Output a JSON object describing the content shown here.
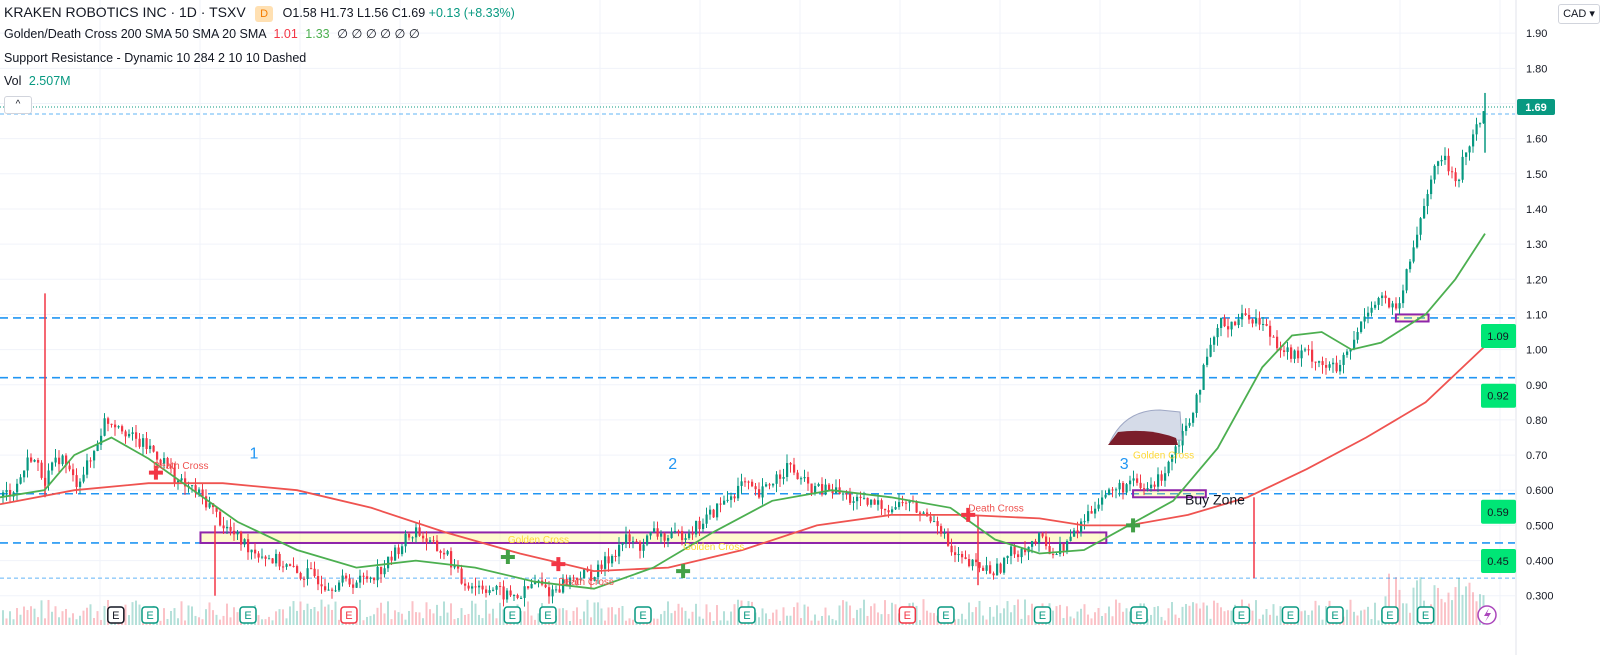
{
  "header": {
    "symbol": "KRAKEN ROBOTICS INC · 1D · TSXV",
    "badge": "D",
    "open": "O1.58",
    "high": "H1.73",
    "low": "L1.56",
    "close": "C1.69",
    "change": "+0.13 (+8.33%)",
    "indicator1_label": "Golden/Death Cross 200 SMA 50 SMA 20 SMA",
    "indicator1_val1": "1.01",
    "indicator1_val2": "1.33",
    "indicator1_rest": "∅ ∅ ∅ ∅ ∅ ∅",
    "indicator2_label": "Support Resistance - Dynamic 10 284 2 10 10 Dashed",
    "vol_label": "Vol",
    "vol_value": "2.507M",
    "currency": "CAD",
    "collapse": "^"
  },
  "colors": {
    "up": "#089981",
    "down": "#f23645",
    "sma200": "#ef5350",
    "sma50": "#4caf50",
    "sr": "#2196f3",
    "zone": "#8e24aa",
    "price_tag": "#089981"
  },
  "chart_data": {
    "type": "candlestick",
    "title": "KRAKEN ROBOTICS INC · 1D · TSXV",
    "ylim": [
      0.27,
      1.93
    ],
    "y_ticks": [
      "1.90",
      "1.80",
      "1.70",
      "1.60",
      "1.50",
      "1.40",
      "1.30",
      "1.20",
      "1.10",
      "1.00",
      "0.90",
      "0.80",
      "0.70",
      "0.600",
      "0.500",
      "0.400",
      "0.300"
    ],
    "last_price": "1.69",
    "sr_levels": [
      {
        "value": 1.09,
        "label": "1.09"
      },
      {
        "value": 0.92,
        "label": "0.92"
      },
      {
        "value": 0.59,
        "label": "0.59"
      },
      {
        "value": 0.45,
        "label": "0.45"
      },
      {
        "value": 0.35,
        "label": ""
      },
      {
        "value": 1.67,
        "label": ""
      }
    ],
    "price_path": [
      [
        0,
        0.58
      ],
      [
        0.01,
        0.61
      ],
      [
        0.02,
        0.7
      ],
      [
        0.03,
        0.63
      ],
      [
        0.04,
        0.7
      ],
      [
        0.05,
        0.62
      ],
      [
        0.06,
        0.68
      ],
      [
        0.07,
        0.8
      ],
      [
        0.08,
        0.79
      ],
      [
        0.09,
        0.74
      ],
      [
        0.1,
        0.72
      ],
      [
        0.11,
        0.68
      ],
      [
        0.12,
        0.62
      ],
      [
        0.13,
        0.6
      ],
      [
        0.14,
        0.56
      ],
      [
        0.15,
        0.5
      ],
      [
        0.16,
        0.46
      ],
      [
        0.17,
        0.43
      ],
      [
        0.18,
        0.41
      ],
      [
        0.19,
        0.39
      ],
      [
        0.2,
        0.36
      ],
      [
        0.21,
        0.36
      ],
      [
        0.22,
        0.33
      ],
      [
        0.23,
        0.34
      ],
      [
        0.24,
        0.34
      ],
      [
        0.25,
        0.36
      ],
      [
        0.26,
        0.39
      ],
      [
        0.27,
        0.45
      ],
      [
        0.28,
        0.49
      ],
      [
        0.29,
        0.44
      ],
      [
        0.3,
        0.42
      ],
      [
        0.31,
        0.34
      ],
      [
        0.32,
        0.33
      ],
      [
        0.33,
        0.32
      ],
      [
        0.34,
        0.3
      ],
      [
        0.35,
        0.3
      ],
      [
        0.36,
        0.34
      ],
      [
        0.37,
        0.31
      ],
      [
        0.38,
        0.34
      ],
      [
        0.39,
        0.36
      ],
      [
        0.4,
        0.36
      ],
      [
        0.41,
        0.41
      ],
      [
        0.42,
        0.46
      ],
      [
        0.43,
        0.44
      ],
      [
        0.44,
        0.48
      ],
      [
        0.45,
        0.46
      ],
      [
        0.46,
        0.48
      ],
      [
        0.47,
        0.5
      ],
      [
        0.48,
        0.54
      ],
      [
        0.49,
        0.58
      ],
      [
        0.5,
        0.62
      ],
      [
        0.51,
        0.58
      ],
      [
        0.52,
        0.63
      ],
      [
        0.53,
        0.67
      ],
      [
        0.54,
        0.62
      ],
      [
        0.55,
        0.6
      ],
      [
        0.56,
        0.6
      ],
      [
        0.57,
        0.58
      ],
      [
        0.58,
        0.56
      ],
      [
        0.59,
        0.56
      ],
      [
        0.6,
        0.55
      ],
      [
        0.61,
        0.57
      ],
      [
        0.62,
        0.53
      ],
      [
        0.63,
        0.52
      ],
      [
        0.64,
        0.42
      ],
      [
        0.65,
        0.39
      ],
      [
        0.66,
        0.38
      ],
      [
        0.67,
        0.37
      ],
      [
        0.68,
        0.42
      ],
      [
        0.69,
        0.44
      ],
      [
        0.7,
        0.46
      ],
      [
        0.71,
        0.42
      ],
      [
        0.72,
        0.46
      ],
      [
        0.73,
        0.52
      ],
      [
        0.74,
        0.58
      ],
      [
        0.75,
        0.6
      ],
      [
        0.76,
        0.62
      ],
      [
        0.77,
        0.6
      ],
      [
        0.78,
        0.63
      ],
      [
        0.79,
        0.72
      ],
      [
        0.8,
        0.8
      ],
      [
        0.81,
        0.94
      ],
      [
        0.82,
        1.07
      ],
      [
        0.83,
        1.08
      ],
      [
        0.84,
        1.1
      ],
      [
        0.85,
        1.07
      ],
      [
        0.86,
        1.02
      ],
      [
        0.87,
        0.98
      ],
      [
        0.88,
        0.99
      ],
      [
        0.89,
        0.96
      ],
      [
        0.9,
        0.94
      ],
      [
        0.91,
        1.01
      ],
      [
        0.92,
        1.12
      ],
      [
        0.93,
        1.15
      ],
      [
        0.94,
        1.1
      ],
      [
        0.95,
        1.27
      ],
      [
        0.96,
        1.45
      ],
      [
        0.97,
        1.55
      ],
      [
        0.98,
        1.48
      ],
      [
        0.99,
        1.6
      ],
      [
        1.0,
        1.69
      ]
    ],
    "sma200": [
      [
        0,
        0.56
      ],
      [
        0.05,
        0.6
      ],
      [
        0.1,
        0.62
      ],
      [
        0.15,
        0.62
      ],
      [
        0.2,
        0.6
      ],
      [
        0.25,
        0.55
      ],
      [
        0.3,
        0.48
      ],
      [
        0.35,
        0.42
      ],
      [
        0.4,
        0.37
      ],
      [
        0.45,
        0.38
      ],
      [
        0.5,
        0.43
      ],
      [
        0.55,
        0.5
      ],
      [
        0.6,
        0.53
      ],
      [
        0.65,
        0.53
      ],
      [
        0.7,
        0.52
      ],
      [
        0.73,
        0.5
      ],
      [
        0.76,
        0.5
      ],
      [
        0.8,
        0.53
      ],
      [
        0.84,
        0.58
      ],
      [
        0.88,
        0.66
      ],
      [
        0.92,
        0.75
      ],
      [
        0.96,
        0.85
      ],
      [
        1.0,
        1.01
      ]
    ],
    "sma50": [
      [
        0,
        0.58
      ],
      [
        0.03,
        0.6
      ],
      [
        0.05,
        0.7
      ],
      [
        0.075,
        0.75
      ],
      [
        0.1,
        0.69
      ],
      [
        0.13,
        0.6
      ],
      [
        0.16,
        0.51
      ],
      [
        0.2,
        0.43
      ],
      [
        0.24,
        0.38
      ],
      [
        0.28,
        0.4
      ],
      [
        0.32,
        0.38
      ],
      [
        0.36,
        0.34
      ],
      [
        0.4,
        0.32
      ],
      [
        0.44,
        0.38
      ],
      [
        0.48,
        0.48
      ],
      [
        0.52,
        0.57
      ],
      [
        0.56,
        0.6
      ],
      [
        0.6,
        0.58
      ],
      [
        0.64,
        0.55
      ],
      [
        0.67,
        0.46
      ],
      [
        0.7,
        0.42
      ],
      [
        0.73,
        0.43
      ],
      [
        0.76,
        0.5
      ],
      [
        0.79,
        0.57
      ],
      [
        0.82,
        0.72
      ],
      [
        0.85,
        0.95
      ],
      [
        0.87,
        1.04
      ],
      [
        0.89,
        1.05
      ],
      [
        0.91,
        1.0
      ],
      [
        0.93,
        1.02
      ],
      [
        0.96,
        1.1
      ],
      [
        0.98,
        1.2
      ],
      [
        1.0,
        1.33
      ]
    ],
    "zones": [
      {
        "label": "",
        "x0": 0.135,
        "x1": 0.745,
        "y0": 0.45,
        "y1": 0.48
      },
      {
        "label": "Buy Zone",
        "x0": 0.763,
        "x1": 0.812,
        "y0": 0.58,
        "y1": 0.6
      },
      {
        "label": "",
        "x0": 0.94,
        "x1": 0.962,
        "y0": 1.08,
        "y1": 1.1
      }
    ],
    "annotations": [
      {
        "text": "1",
        "x": 0.168,
        "y": 0.69
      },
      {
        "text": "2",
        "x": 0.45,
        "y": 0.66
      },
      {
        "text": "3",
        "x": 0.754,
        "y": 0.66
      },
      {
        "text": "Buy Zone",
        "x": 0.798,
        "y": 0.56
      },
      {
        "text": "Death Cross",
        "x": 0.103,
        "y": 0.66
      },
      {
        "text": "Death Cross",
        "x": 0.376,
        "y": 0.33
      },
      {
        "text": "Death Cross",
        "x": 0.652,
        "y": 0.54
      },
      {
        "text": "Golden Cross",
        "x": 0.342,
        "y": 0.45
      },
      {
        "text": "Golden Cross",
        "x": 0.46,
        "y": 0.43
      },
      {
        "text": "Golden Cross",
        "x": 0.763,
        "y": 0.69
      }
    ],
    "cross_markers": [
      {
        "kind": "death",
        "x": 0.105,
        "y": 0.65
      },
      {
        "kind": "golden",
        "x": 0.342,
        "y": 0.41
      },
      {
        "kind": "death",
        "x": 0.376,
        "y": 0.39
      },
      {
        "kind": "golden",
        "x": 0.46,
        "y": 0.37
      },
      {
        "kind": "death",
        "x": 0.652,
        "y": 0.53
      },
      {
        "kind": "golden",
        "x": 0.763,
        "y": 0.5
      }
    ],
    "event_markers": [
      {
        "kind": "dividend",
        "x": 0.078
      },
      {
        "kind": "earnings",
        "x": 0.101
      },
      {
        "kind": "earnings",
        "x": 0.167
      },
      {
        "kind": "earnings-red",
        "x": 0.235
      },
      {
        "kind": "earnings",
        "x": 0.345
      },
      {
        "kind": "earnings",
        "x": 0.369
      },
      {
        "kind": "earnings",
        "x": 0.433
      },
      {
        "kind": "earnings",
        "x": 0.503
      },
      {
        "kind": "earnings-red",
        "x": 0.611
      },
      {
        "kind": "earnings",
        "x": 0.637
      },
      {
        "kind": "earnings",
        "x": 0.702
      },
      {
        "kind": "earnings",
        "x": 0.767
      },
      {
        "kind": "earnings",
        "x": 0.836
      },
      {
        "kind": "earnings",
        "x": 0.869
      },
      {
        "kind": "earnings",
        "x": 0.899
      },
      {
        "kind": "earnings",
        "x": 0.936
      },
      {
        "kind": "earnings",
        "x": 0.96
      }
    ]
  }
}
